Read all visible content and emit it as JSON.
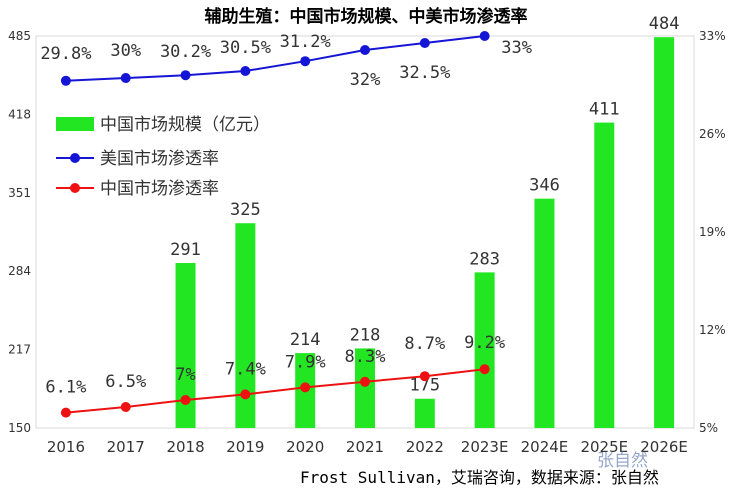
{
  "chart_data": {
    "type": "bar",
    "title": "辅助生殖：中国市场规模、中美市场渗透率",
    "categories": [
      "2016",
      "2017",
      "2018",
      "2019",
      "2020",
      "2021",
      "2022",
      "2023E",
      "2024E",
      "2025E",
      "2026E"
    ],
    "series": [
      {
        "name": "中国市场规模（亿元）",
        "type": "bar",
        "axis": "left",
        "color": "#22e622",
        "values": [
          null,
          null,
          291,
          325,
          214,
          218,
          175,
          283,
          346,
          411,
          484
        ],
        "labels": [
          "",
          "",
          "291",
          "325",
          "214",
          "218",
          "175",
          "283",
          "346",
          "411",
          "484"
        ]
      },
      {
        "name": "美国市场渗透率",
        "type": "line",
        "axis": "right",
        "color": "#1515d6",
        "values": [
          29.8,
          30.0,
          30.2,
          30.5,
          31.2,
          32.0,
          32.5,
          33.0,
          null,
          null,
          null
        ],
        "labels": [
          "29.8%",
          "30%",
          "30.2%",
          "30.5%",
          "31.2%",
          "32%",
          "32.5%",
          "33%",
          "",
          "",
          ""
        ]
      },
      {
        "name": "中国市场渗透率",
        "type": "line",
        "axis": "right",
        "color": "#ee1111",
        "values": [
          6.1,
          6.5,
          7.0,
          7.4,
          7.9,
          8.3,
          8.7,
          9.2,
          null,
          null,
          null
        ],
        "labels": [
          "6.1%",
          "6.5%",
          "7%",
          "7.4%",
          "7.9%",
          "8.3%",
          "8.7%",
          "9.2%",
          "",
          "",
          ""
        ]
      }
    ],
    "y_left": {
      "range": [
        150,
        485
      ],
      "ticks": [
        "150",
        "217",
        "284",
        "351",
        "418",
        "485"
      ]
    },
    "y_right": {
      "range": [
        5,
        33
      ],
      "ticks": [
        "5%",
        "12%",
        "19%",
        "26%",
        "33%"
      ]
    },
    "legend_position": "upper-left",
    "grid": false
  },
  "source": "Frost Sullivan，艾瑞咨询，数据来源：张自然",
  "watermark": "张自然"
}
